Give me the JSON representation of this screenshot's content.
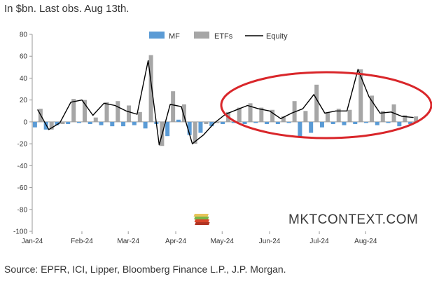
{
  "header": {
    "subtitle": "In $bn. Last obs. Aug 13th."
  },
  "footer": {
    "source": "Source: EPFR, ICI, Lipper, Bloomberg Finance L.P., J.P. Morgan."
  },
  "watermark": {
    "text": "MKTCONTEXT.COM"
  },
  "colors": {
    "mf": "#5b9bd5",
    "etfs": "#a6a6a6",
    "equity": "#000000",
    "annotation": "#d9262a",
    "axis": "#9a9a9a"
  },
  "chart_data": {
    "type": "bar",
    "title": "",
    "xlabel": "",
    "ylabel": "",
    "ylim": [
      -100,
      80
    ],
    "yticks": [
      80,
      60,
      40,
      20,
      0,
      -20,
      -40,
      -60,
      -80,
      -100
    ],
    "x_tick_labels": [
      "Jan-24",
      "Feb-24",
      "Mar-24",
      "Apr-24",
      "May-24",
      "Jun-24",
      "Jul-24",
      "Aug-24"
    ],
    "x_tick_positions": [
      0,
      4.5,
      8.7,
      13,
      17.2,
      21.5,
      26,
      30.2
    ],
    "legend": {
      "placement": "top-center",
      "entries": [
        "MF",
        "ETFs",
        "Equity"
      ]
    },
    "grid": false,
    "series": [
      {
        "name": "MF",
        "type": "bar",
        "values": [
          -5,
          -7,
          -3,
          -2,
          -1,
          -2,
          -3,
          -4,
          -4,
          -3,
          -6,
          -2,
          -13,
          2,
          -12,
          -10,
          -4,
          -2,
          -1,
          -2,
          -1,
          -2,
          -2,
          -1,
          -14,
          -10,
          -5,
          -2,
          -3,
          -2,
          -1,
          -3,
          -1,
          -4,
          -2
        ]
      },
      {
        "name": "ETFs",
        "type": "bar",
        "values": [
          12,
          -7,
          -2,
          21,
          20,
          4,
          18,
          19,
          15,
          9,
          61,
          -22,
          28,
          16,
          -20,
          -2,
          -1,
          9,
          13,
          17,
          13,
          11,
          5,
          19,
          10,
          34,
          9,
          12,
          11,
          48,
          24,
          10,
          16,
          6,
          5
        ]
      },
      {
        "name": "Equity",
        "type": "line",
        "values": [
          11,
          -7,
          -1,
          18,
          20,
          6,
          17,
          15,
          10,
          7,
          56,
          -21,
          16,
          14,
          -20,
          -12,
          -1,
          7,
          11,
          15,
          12,
          10,
          3,
          8,
          12,
          25,
          8,
          10,
          10,
          48,
          23,
          8,
          9,
          5,
          4
        ]
      }
    ]
  }
}
